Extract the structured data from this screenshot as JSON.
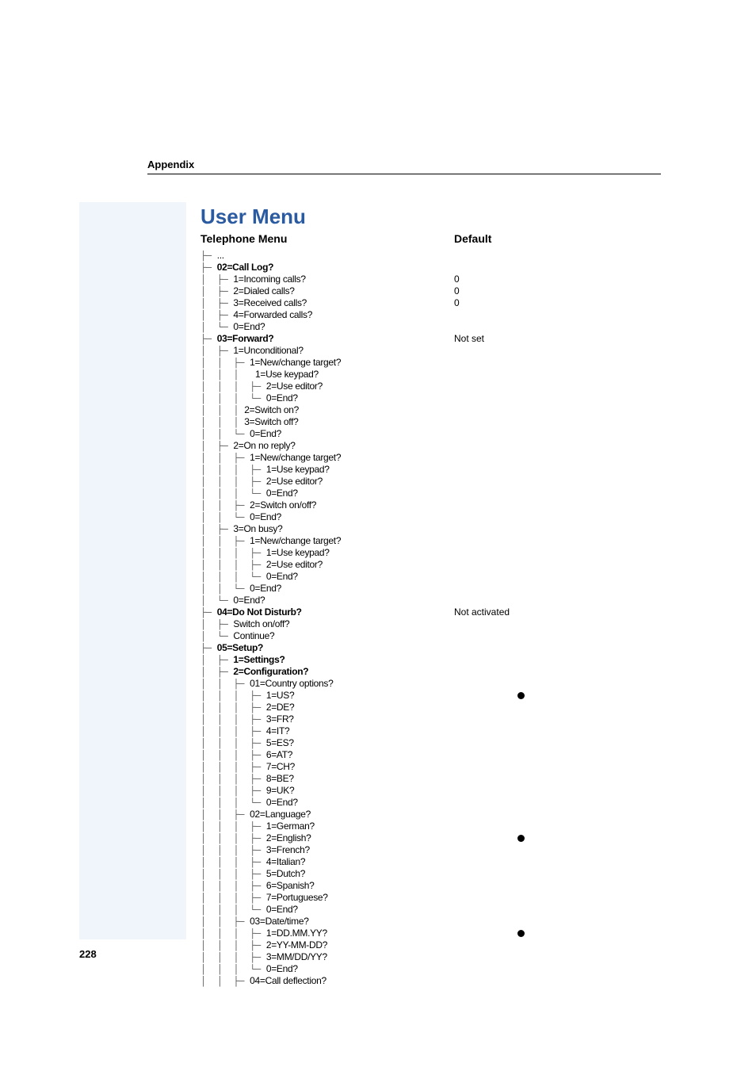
{
  "header": {
    "appendix": "Appendix"
  },
  "title": "User Menu",
  "columns": {
    "left": "Telephone Menu",
    "right": "Default"
  },
  "page_number": "228",
  "rows": [
    {
      "prefix": "├─ ",
      "label": "...",
      "bold": false,
      "default": ""
    },
    {
      "prefix": "├─ ",
      "label": "02=Call Log?",
      "bold": true,
      "default": ""
    },
    {
      "prefix": "│  ├─ ",
      "label": "1=Incoming calls?",
      "bold": false,
      "default": "0"
    },
    {
      "prefix": "│  ├─ ",
      "label": "2=Dialed calls?",
      "bold": false,
      "default": "0"
    },
    {
      "prefix": "│  ├─ ",
      "label": "3=Received calls?",
      "bold": false,
      "default": "0"
    },
    {
      "prefix": "│  ├─ ",
      "label": "4=Forwarded calls?",
      "bold": false,
      "default": ""
    },
    {
      "prefix": "│  └─ ",
      "label": "0=End?",
      "bold": false,
      "default": ""
    },
    {
      "prefix": "├─ ",
      "label": "03=Forward?",
      "bold": true,
      "default": "Not set"
    },
    {
      "prefix": "│  ├─ ",
      "label": "1=Unconditional?",
      "bold": false,
      "default": ""
    },
    {
      "prefix": "│  │  ├─ ",
      "label": "1=New/change target?",
      "bold": false,
      "default": ""
    },
    {
      "prefix": "│  │  │   ",
      "label": "1=Use keypad?",
      "bold": false,
      "default": ""
    },
    {
      "prefix": "│  │  │  ├─ ",
      "label": "2=Use editor?",
      "bold": false,
      "default": ""
    },
    {
      "prefix": "│  │  │  └─ ",
      "label": "0=End?",
      "bold": false,
      "default": ""
    },
    {
      "prefix": "│  │  │ ",
      "label": "2=Switch on?",
      "bold": false,
      "default": ""
    },
    {
      "prefix": "│  │  │ ",
      "label": "3=Switch off?",
      "bold": false,
      "default": ""
    },
    {
      "prefix": "│  │  └─ ",
      "label": "0=End?",
      "bold": false,
      "default": ""
    },
    {
      "prefix": "│  ├─ ",
      "label": "2=On no reply?",
      "bold": false,
      "default": ""
    },
    {
      "prefix": "│  │  ├─ ",
      "label": "1=New/change target?",
      "bold": false,
      "default": ""
    },
    {
      "prefix": "│  │  │  ├─ ",
      "label": "1=Use keypad?",
      "bold": false,
      "default": ""
    },
    {
      "prefix": "│  │  │  ├─ ",
      "label": "2=Use editor?",
      "bold": false,
      "default": ""
    },
    {
      "prefix": "│  │  │  └─ ",
      "label": "0=End?",
      "bold": false,
      "default": ""
    },
    {
      "prefix": "│  │  ├─ ",
      "label": "2=Switch on/off?",
      "bold": false,
      "default": ""
    },
    {
      "prefix": "│  │  └─ ",
      "label": "0=End?",
      "bold": false,
      "default": ""
    },
    {
      "prefix": "│  ├─ ",
      "label": "3=On busy?",
      "bold": false,
      "default": ""
    },
    {
      "prefix": "│  │  ├─ ",
      "label": "1=New/change target?",
      "bold": false,
      "default": ""
    },
    {
      "prefix": "│  │  │  ├─ ",
      "label": "1=Use keypad?",
      "bold": false,
      "default": ""
    },
    {
      "prefix": "│  │  │  ├─ ",
      "label": "2=Use editor?",
      "bold": false,
      "default": ""
    },
    {
      "prefix": "│  │  │  └─ ",
      "label": "0=End?",
      "bold": false,
      "default": ""
    },
    {
      "prefix": "│  │  └─ ",
      "label": "0=End?",
      "bold": false,
      "default": ""
    },
    {
      "prefix": "│  └─ ",
      "label": "0=End?",
      "bold": false,
      "default": ""
    },
    {
      "prefix": "├─ ",
      "label": "04=Do Not Disturb?",
      "bold": true,
      "default": "Not activated"
    },
    {
      "prefix": "│  ├─ ",
      "label": "Switch on/off?",
      "bold": false,
      "default": ""
    },
    {
      "prefix": "│  └─ ",
      "label": "Continue?",
      "bold": false,
      "default": ""
    },
    {
      "prefix": "├─ ",
      "label": "05=Setup?",
      "bold": true,
      "default": ""
    },
    {
      "prefix": "│  ├─ ",
      "label": "1=Settings?",
      "bold": true,
      "default": ""
    },
    {
      "prefix": "│  ├─ ",
      "label": "2=Configuration?",
      "bold": true,
      "default": ""
    },
    {
      "prefix": "│  │  ├─ ",
      "label": "01=Country options?",
      "bold": false,
      "default": ""
    },
    {
      "prefix": "│  │  │  ├─ ",
      "label": "1=US?",
      "bold": false,
      "default": "●"
    },
    {
      "prefix": "│  │  │  ├─ ",
      "label": "2=DE?",
      "bold": false,
      "default": ""
    },
    {
      "prefix": "│  │  │  ├─ ",
      "label": "3=FR?",
      "bold": false,
      "default": ""
    },
    {
      "prefix": "│  │  │  ├─ ",
      "label": "4=IT?",
      "bold": false,
      "default": ""
    },
    {
      "prefix": "│  │  │  ├─ ",
      "label": "5=ES?",
      "bold": false,
      "default": ""
    },
    {
      "prefix": "│  │  │  ├─ ",
      "label": "6=AT?",
      "bold": false,
      "default": ""
    },
    {
      "prefix": "│  │  │  ├─ ",
      "label": "7=CH?",
      "bold": false,
      "default": ""
    },
    {
      "prefix": "│  │  │  ├─ ",
      "label": "8=BE?",
      "bold": false,
      "default": ""
    },
    {
      "prefix": "│  │  │  ├─ ",
      "label": "9=UK?",
      "bold": false,
      "default": ""
    },
    {
      "prefix": "│  │  │  └─ ",
      "label": "0=End?",
      "bold": false,
      "default": ""
    },
    {
      "prefix": "│  │  ├─ ",
      "label": "02=Language?",
      "bold": false,
      "default": ""
    },
    {
      "prefix": "│  │  │  ├─ ",
      "label": "1=German?",
      "bold": false,
      "default": ""
    },
    {
      "prefix": "│  │  │  ├─ ",
      "label": "2=English?",
      "bold": false,
      "default": "●"
    },
    {
      "prefix": "│  │  │  ├─ ",
      "label": "3=French?",
      "bold": false,
      "default": ""
    },
    {
      "prefix": "│  │  │  ├─ ",
      "label": "4=Italian?",
      "bold": false,
      "default": ""
    },
    {
      "prefix": "│  │  │  ├─ ",
      "label": "5=Dutch?",
      "bold": false,
      "default": ""
    },
    {
      "prefix": "│  │  │  ├─ ",
      "label": "6=Spanish?",
      "bold": false,
      "default": ""
    },
    {
      "prefix": "│  │  │  ├─ ",
      "label": "7=Portuguese?",
      "bold": false,
      "default": ""
    },
    {
      "prefix": "│  │  │  └─ ",
      "label": "0=End?",
      "bold": false,
      "default": ""
    },
    {
      "prefix": "│  │  ├─ ",
      "label": "03=Date/time?",
      "bold": false,
      "default": ""
    },
    {
      "prefix": "│  │  │  ├─ ",
      "label": "1=DD.MM.YY?",
      "bold": false,
      "default": "●"
    },
    {
      "prefix": "│  │  │  ├─ ",
      "label": "2=YY-MM-DD?",
      "bold": false,
      "default": ""
    },
    {
      "prefix": "│  │  │  ├─ ",
      "label": "3=MM/DD/YY?",
      "bold": false,
      "default": ""
    },
    {
      "prefix": "│  │  │  └─ ",
      "label": "0=End?",
      "bold": false,
      "default": ""
    },
    {
      "prefix": "│  │  ├─ ",
      "label": "04=Call deflection?",
      "bold": false,
      "default": ""
    }
  ]
}
